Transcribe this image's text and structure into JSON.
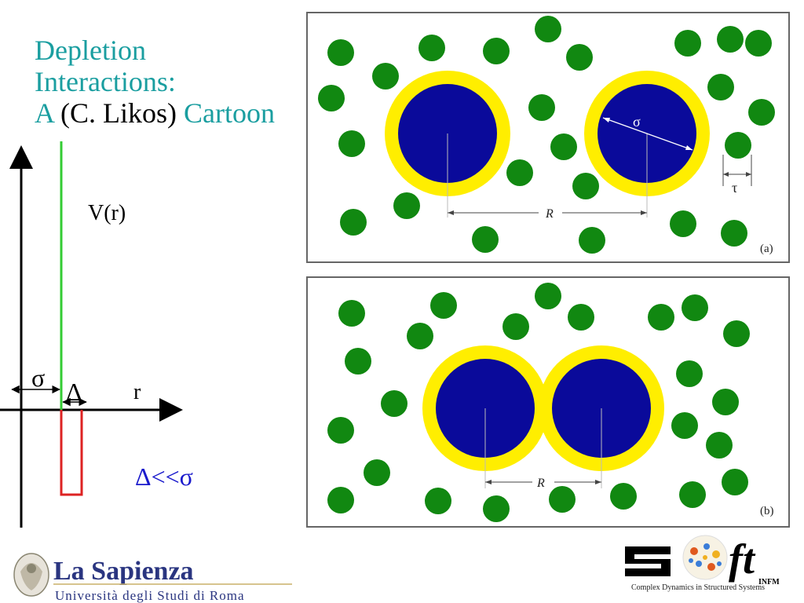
{
  "title": {
    "line1": "Depletion",
    "line2": "Interactions:",
    "line3_a": "A",
    "line3_b": " (C. Likos) ",
    "line3_c": "Cartoon"
  },
  "potential_plot": {
    "ylabel": "V(r)",
    "xlabel": "r",
    "sigma_label": "σ",
    "delta_label": "Δ",
    "condition": "Δ<<σ",
    "colors": {
      "axis": "#000000",
      "hard_core": "#33cc33",
      "well": "#dd2222",
      "condition": "#1a1acc"
    }
  },
  "panel_a": {
    "tag": "(a)",
    "sigma_label": "σ",
    "tau_label": "τ",
    "distance_label": "R"
  },
  "panel_b": {
    "tag": "(b)",
    "distance_label": "R"
  },
  "colors": {
    "colloid": "#0a0a9a",
    "depletion_zone": "#ffee00",
    "depletant": "#118811"
  },
  "logos": {
    "sapienza_name": "La Sapienza",
    "sapienza_subtitle": "Università degli Studi di Roma",
    "soft_letters": "S ft",
    "soft_infm": "INFM",
    "soft_tagline": "Complex Dynamics in Structured Systems"
  }
}
